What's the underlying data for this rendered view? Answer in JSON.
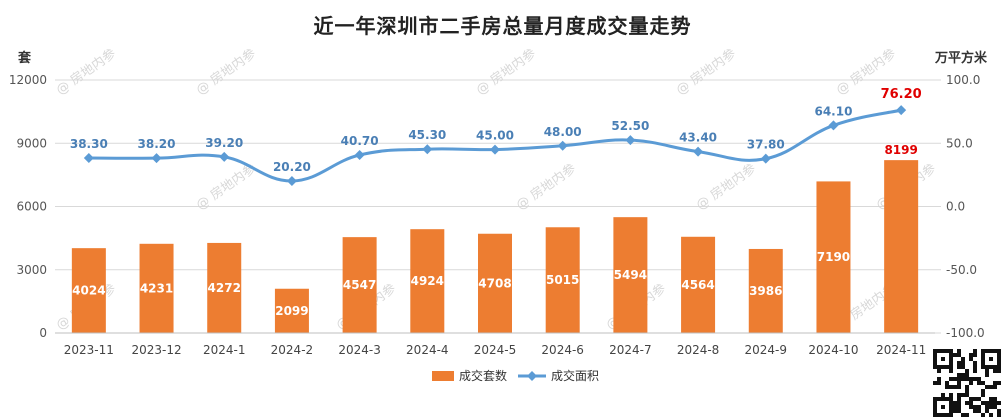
{
  "chart_data": {
    "type": "bar+line",
    "title": "近一年深圳市二手房总量月度成交量走势",
    "categories": [
      "2023-11",
      "2023-12",
      "2024-1",
      "2024-2",
      "2024-3",
      "2024-4",
      "2024-5",
      "2024-6",
      "2024-7",
      "2024-8",
      "2024-9",
      "2024-10",
      "2024-11"
    ],
    "series": [
      {
        "name": "成交套数",
        "type": "bar",
        "axis": "left",
        "values": [
          4024,
          4231,
          4272,
          2099,
          4547,
          4924,
          4708,
          5015,
          5494,
          4564,
          3986,
          7190,
          8199
        ],
        "labels": [
          "4024",
          "4231",
          "4272",
          "2099",
          "4547",
          "4924",
          "4708",
          "5015",
          "5494",
          "4564",
          "3986",
          "7190",
          "8199"
        ]
      },
      {
        "name": "成交面积",
        "type": "line",
        "axis": "right",
        "values": [
          38.3,
          38.2,
          39.2,
          20.2,
          40.7,
          45.3,
          45.0,
          48.0,
          52.5,
          43.4,
          37.8,
          64.1,
          76.2
        ],
        "labels": [
          "38.30",
          "38.20",
          "39.20",
          "20.20",
          "40.70",
          "45.30",
          "45.00",
          "48.00",
          "52.50",
          "43.40",
          "37.80",
          "64.10",
          "76.20"
        ]
      }
    ],
    "y_left": {
      "unit": "套",
      "ylim": [
        0,
        12000
      ],
      "ticks": [
        "0",
        "3000",
        "6000",
        "9000",
        "12000"
      ]
    },
    "y_right": {
      "unit": "万平方米",
      "ylim": [
        -100,
        100
      ],
      "ticks": [
        "-100.0",
        "-50.0",
        "0.0",
        "50.0",
        "100.0"
      ]
    },
    "grid": true,
    "legend": "bottom-center",
    "colors": {
      "bar": "#ed7d31",
      "line": "#5b9bd5",
      "highlight": "#e00000",
      "grid": "#d9d9d9"
    },
    "watermark": "@ 房地内参"
  }
}
